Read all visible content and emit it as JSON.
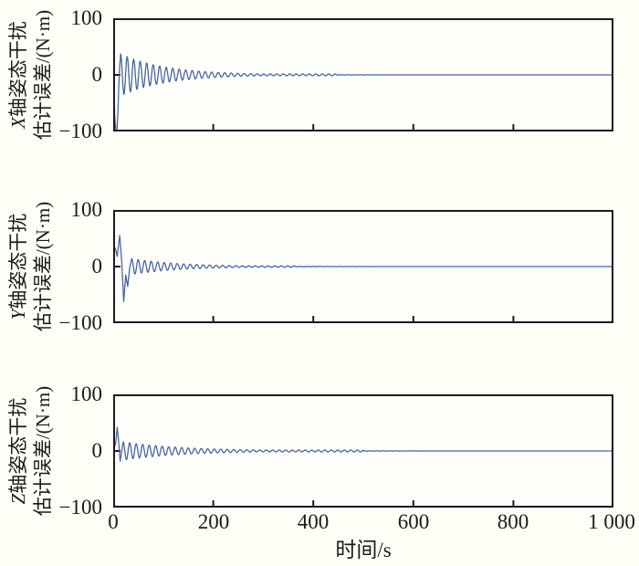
{
  "figure": {
    "background_color": "#fefdf6",
    "kind": "three-panel time-series figure"
  },
  "chart_data": {
    "type": "line",
    "title": "",
    "axes_color": "#1b1b1b",
    "line_color": "#4766a6",
    "grid": "off",
    "legend": "none",
    "x": {
      "label": "时间/s",
      "range": [
        0,
        1000
      ],
      "ticks": [
        0,
        200,
        400,
        600,
        800,
        1000
      ],
      "tick_labels": [
        "0",
        "200",
        "400",
        "600",
        "800",
        "1 000"
      ]
    },
    "y": {
      "range": [
        -100,
        100
      ],
      "ticks": [
        100,
        0,
        -100
      ],
      "tick_labels": [
        "100",
        "0",
        "−100"
      ],
      "unit": "N·m"
    },
    "subplots": [
      {
        "id": "x-axis-disturbance-error",
        "ylabel": {
          "axis": "X",
          "line1_rest": "轴姿态干扰",
          "line2": "估计误差/(N·m)"
        },
        "series": {
          "keypoints": [
            [
              0,
              0
            ],
            [
              1.5,
              -30
            ],
            [
              3,
              -72
            ],
            [
              5,
              -95
            ],
            [
              7.5,
              -96
            ],
            [
              9,
              -75
            ],
            [
              11,
              -25
            ],
            [
              13,
              15
            ],
            [
              15,
              37
            ]
          ],
          "damped_oscillation": {
            "start_amplitude": 37,
            "period_s": 13,
            "decay_tau_s": 90,
            "residual_ripple_amplitude": 1.6,
            "ripple_end_s": 445
          },
          "steady_state_value": 0
        }
      },
      {
        "id": "y-axis-disturbance-error",
        "ylabel": {
          "axis": "Y",
          "line1_rest": "轴姿态干扰",
          "line2": "估计误差/(N·m)"
        },
        "series": {
          "keypoints": [
            [
              0,
              0
            ],
            [
              0.7,
              30
            ],
            [
              4,
              33
            ],
            [
              8,
              18
            ],
            [
              13,
              55
            ],
            [
              17,
              10
            ],
            [
              21,
              -62
            ],
            [
              25,
              -15
            ],
            [
              29,
              -35
            ],
            [
              33,
              -2
            ],
            [
              37,
              14
            ]
          ],
          "damped_oscillation": {
            "start_amplitude": 14,
            "period_s": 13,
            "decay_tau_s": 95,
            "residual_ripple_amplitude": 1.2,
            "ripple_end_s": 365
          },
          "steady_state_value": 0
        }
      },
      {
        "id": "z-axis-disturbance-error",
        "ylabel": {
          "axis": "Z",
          "line1_rest": "轴姿态干扰",
          "line2": "估计误差/(N·m)"
        },
        "series": {
          "keypoints": [
            [
              0,
              0
            ],
            [
              2,
              5
            ],
            [
              5,
              14
            ],
            [
              8,
              42
            ],
            [
              11,
              15
            ],
            [
              14,
              -18
            ],
            [
              17,
              0
            ],
            [
              20,
              16
            ]
          ],
          "damped_oscillation": {
            "start_amplitude": 16,
            "period_s": 13,
            "decay_tau_s": 120,
            "residual_ripple_amplitude": 1.7,
            "ripple_end_s": 500
          },
          "steady_state_value": 0
        }
      }
    ]
  }
}
